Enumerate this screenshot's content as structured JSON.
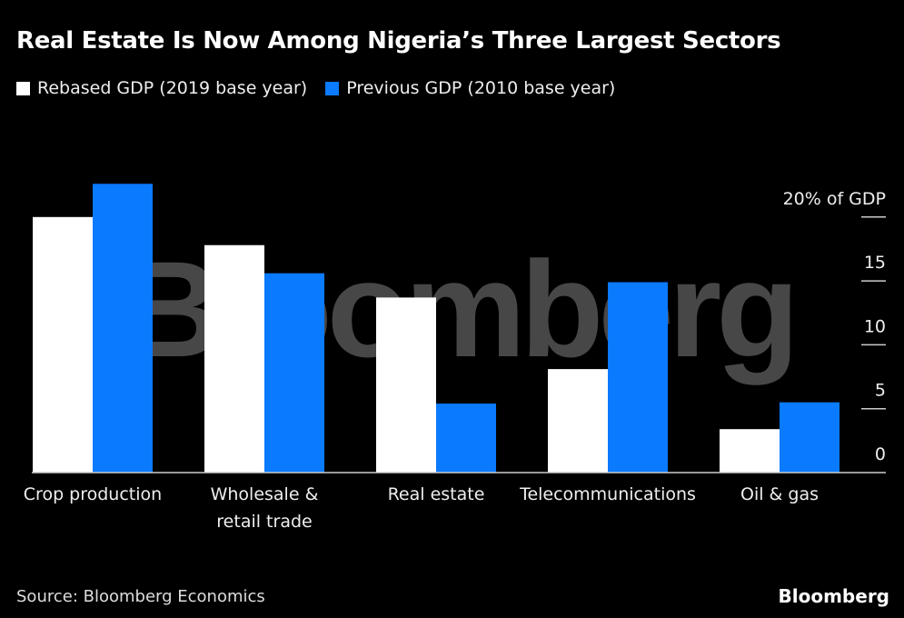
{
  "title": "Real Estate Is Now Among Nigeria’s Three Largest Sectors",
  "source": "Source: Bloomberg Economics",
  "brand": "Bloomberg",
  "watermark": "Bloomberg",
  "colors": {
    "rebased": "#ffffff",
    "previous": "#0a7aff",
    "background": "#000000"
  },
  "chart_data": {
    "type": "bar",
    "title": "Real Estate Is Now Among Nigeria’s Three Largest Sectors",
    "xlabel": "",
    "ylabel": "% of GDP",
    "categories": [
      [
        "Crop production"
      ],
      [
        "Wholesale &",
        "retail trade"
      ],
      [
        "Real estate"
      ],
      [
        "Telecommunications"
      ],
      [
        "Oil & gas"
      ]
    ],
    "series": [
      {
        "name": "Rebased GDP (2019 base year)",
        "values": [
          20.0,
          17.8,
          13.7,
          8.1,
          3.4
        ]
      },
      {
        "name": "Previous GDP (2010 base year)",
        "values": [
          22.6,
          15.6,
          5.4,
          14.9,
          5.5
        ]
      }
    ],
    "yticks": [
      0,
      5,
      10,
      15,
      20
    ],
    "ytick_labels": [
      "0",
      "5",
      "10",
      "15",
      "20% of GDP"
    ],
    "ylim": [
      0,
      22.6
    ],
    "legend": "top-left",
    "grid": false
  }
}
